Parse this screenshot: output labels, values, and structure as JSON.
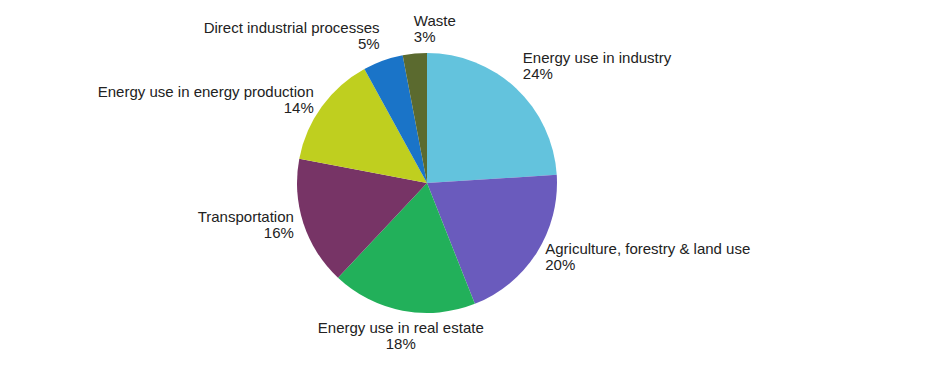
{
  "chart_data": {
    "type": "pie",
    "categories": [
      "Energy use in industry",
      "Agriculture, forestry & land use",
      "Energy use in real estate",
      "Transportation",
      "Energy use in energy production",
      "Direct industrial processes",
      "Waste"
    ],
    "values": [
      24,
      20,
      18,
      16,
      14,
      5,
      3
    ],
    "value_labels": [
      "24%",
      "20%",
      "18%",
      "16%",
      "14%",
      "5%",
      "3%"
    ],
    "colors": [
      "#63c3dd",
      "#6a5bbd",
      "#22b05a",
      "#773466",
      "#bfcf1f",
      "#1a74c8",
      "#5b6a2f"
    ],
    "data_labels": true
  }
}
